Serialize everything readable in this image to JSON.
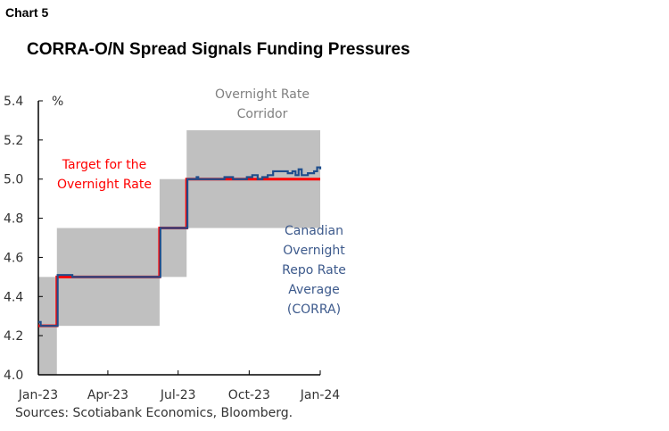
{
  "chart_label": "Chart 5",
  "chart_data": {
    "type": "line",
    "title": "CORRA-O/N Spread Signals Funding Pressures",
    "ylabel": "%",
    "ylim": [
      4.0,
      5.4
    ],
    "yticks": [
      "4.0",
      "4.2",
      "4.4",
      "4.6",
      "4.8",
      "5.0",
      "5.2",
      "5.4"
    ],
    "xlim": [
      "2023-01-01",
      "2024-01-01"
    ],
    "xticks": [
      {
        "date": "2023-01-01",
        "label": "Jan-23"
      },
      {
        "date": "2023-04-01",
        "label": "Apr-23"
      },
      {
        "date": "2023-07-01",
        "label": "Jul-23"
      },
      {
        "date": "2023-10-01",
        "label": "Oct-23"
      },
      {
        "date": "2024-01-01",
        "label": "Jan-24"
      }
    ],
    "corridor": {
      "name": "Overnight Rate Corridor",
      "color": "#c0c0c0",
      "bands": [
        {
          "start": "2023-01-01",
          "end": "2023-01-25",
          "low": 4.0,
          "high": 4.5
        },
        {
          "start": "2023-01-25",
          "end": "2023-06-07",
          "low": 4.25,
          "high": 4.75
        },
        {
          "start": "2023-06-07",
          "end": "2023-07-12",
          "low": 4.5,
          "high": 5.0
        },
        {
          "start": "2023-07-12",
          "end": "2024-01-01",
          "low": 4.75,
          "high": 5.25
        }
      ]
    },
    "series": [
      {
        "name": "Target for the Overnight Rate",
        "color": "#ff0000",
        "step": true,
        "points": [
          [
            "2023-01-01",
            4.25
          ],
          [
            "2023-01-25",
            4.5
          ],
          [
            "2023-06-07",
            4.75
          ],
          [
            "2023-07-12",
            5.0
          ],
          [
            "2024-01-01",
            5.0
          ]
        ]
      },
      {
        "name": "Canadian Overnight Repo Rate Average (CORRA)",
        "color": "#1f4e8c",
        "step": true,
        "points": [
          [
            "2023-01-01",
            4.27
          ],
          [
            "2023-01-04",
            4.25
          ],
          [
            "2023-01-26",
            4.51
          ],
          [
            "2023-02-14",
            4.5
          ],
          [
            "2023-06-08",
            4.75
          ],
          [
            "2023-07-13",
            5.0
          ],
          [
            "2023-07-25",
            5.01
          ],
          [
            "2023-07-27",
            5.0
          ],
          [
            "2023-08-30",
            5.01
          ],
          [
            "2023-09-10",
            5.0
          ],
          [
            "2023-09-20",
            5.0
          ],
          [
            "2023-09-28",
            5.01
          ],
          [
            "2023-10-05",
            5.02
          ],
          [
            "2023-10-12",
            5.0
          ],
          [
            "2023-10-18",
            5.01
          ],
          [
            "2023-10-25",
            5.02
          ],
          [
            "2023-11-01",
            5.04
          ],
          [
            "2023-11-15",
            5.04
          ],
          [
            "2023-11-20",
            5.03
          ],
          [
            "2023-11-26",
            5.04
          ],
          [
            "2023-11-30",
            5.02
          ],
          [
            "2023-12-04",
            5.05
          ],
          [
            "2023-12-08",
            5.02
          ],
          [
            "2023-12-16",
            5.03
          ],
          [
            "2023-12-24",
            5.04
          ],
          [
            "2023-12-28",
            5.06
          ],
          [
            "2024-01-01",
            5.05
          ]
        ]
      }
    ],
    "annotations": [
      "Overnight Rate\nCorridor",
      "Target for the\nOvernight Rate",
      "Canadian\nOvernight\nRepo Rate\nAverage\n(CORRA)"
    ],
    "source": "Sources: Scotiabank Economics, Bloomberg."
  }
}
